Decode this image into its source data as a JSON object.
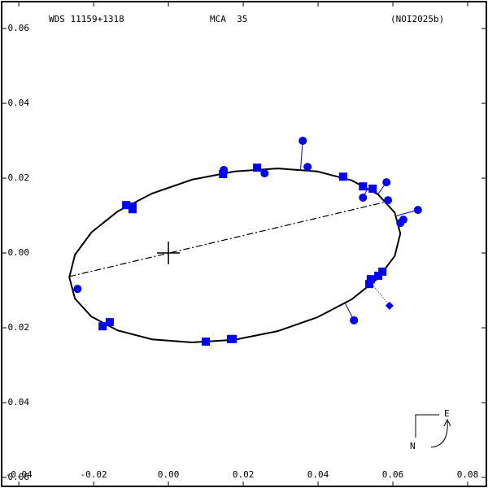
{
  "chart_data": {
    "type": "scatter",
    "title": "WDS 11159+1318",
    "subtitle": "MCA  35",
    "reference": "(NOI2025b)",
    "compass": {
      "east": "E",
      "north": "N"
    },
    "xlim": [
      -0.0446,
      0.085
    ],
    "ylim": [
      -0.0624,
      0.0672
    ],
    "xticks": [
      -0.04,
      -0.02,
      {
        "value": 0,
        "label": "0.00"
      },
      0.02,
      0.04,
      0.06,
      0.08
    ],
    "yticks": [
      0.06,
      0.04,
      0.02,
      {
        "value": 0,
        "label": "0.00"
      },
      -0.02,
      -0.04,
      -0.06
    ],
    "series": [
      {
        "marker": "line",
        "color": "#000000",
        "x": [
          0.062,
          0.0605,
          0.056,
          0.049,
          0.0398,
          0.0292,
          0.0177,
          0.0063,
          -0.0044,
          -0.0136,
          -0.0206,
          -0.025,
          -0.0265,
          -0.025,
          -0.0206,
          -0.0136,
          -0.0044,
          0.0063,
          0.0177,
          0.0292,
          0.0398,
          0.049,
          0.056,
          0.0605,
          0.062
        ],
        "y": [
          0.0052,
          -0.0008,
          -0.0068,
          -0.0124,
          -0.0172,
          -0.0209,
          -0.0232,
          -0.0239,
          -0.0231,
          -0.0207,
          -0.017,
          -0.0122,
          -0.0065,
          -0.0005,
          0.0055,
          0.0111,
          0.0159,
          0.0196,
          0.0218,
          0.0226,
          0.0218,
          0.0194,
          0.0157,
          0.0108,
          0.0052
        ]
      },
      {
        "marker": "dashdot",
        "color": "#000000",
        "x": [
          -0.0265,
          0.0583
        ],
        "y": [
          -0.0063,
          0.0137
        ]
      },
      {
        "marker": "circle",
        "color": "#0000ff",
        "x": [
          0.0359,
          0.0372,
          0.0148,
          0.0257,
          0.0583,
          0.0587,
          0.0667,
          0.0628,
          0.062,
          -0.0243,
          0.0496,
          0.052
        ],
        "y": [
          0.03,
          0.023,
          0.0222,
          0.0213,
          0.0189,
          0.0141,
          0.0115,
          0.0089,
          0.008,
          -0.0096,
          -0.018,
          0.0148
        ]
      },
      {
        "marker": "square",
        "color": "#0000ff",
        "x": [
          0.0237,
          0.0146,
          0.0467,
          0.052,
          0.0546,
          -0.0113,
          -0.0096,
          -0.0096,
          0.0537,
          0.0541,
          0.0561,
          0.0572,
          -0.0176,
          -0.0157,
          0.01,
          0.0167,
          0.0172
        ],
        "y": [
          0.0228,
          0.0211,
          0.0204,
          0.0178,
          0.0172,
          0.0128,
          0.0124,
          0.0117,
          -0.0083,
          -0.007,
          -0.0061,
          -0.005,
          -0.0196,
          -0.0185,
          -0.0237,
          -0.023,
          -0.023
        ]
      },
      {
        "marker": "diamond",
        "color": "#0000ff",
        "x": [
          0.0591
        ],
        "y": [
          -0.0141
        ]
      },
      {
        "marker": "cross",
        "color": "#000000",
        "x": [
          0
        ],
        "y": [
          0
        ]
      }
    ]
  }
}
